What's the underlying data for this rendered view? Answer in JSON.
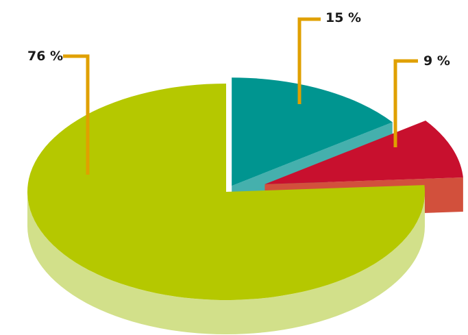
{
  "chart_data": {
    "type": "pie",
    "style": "3d-exploded",
    "title": "",
    "slices": [
      {
        "label": "76 %",
        "value": 76,
        "color": "#b5c800",
        "side_color": "#d2e08a"
      },
      {
        "label": "15 %",
        "value": 15,
        "color": "#009590",
        "side_color": "#45b0ad"
      },
      {
        "label": "9 %",
        "value": 9,
        "color": "#c8102e",
        "side_color": "#d2503c"
      }
    ],
    "leader_color": "#e0a000"
  }
}
